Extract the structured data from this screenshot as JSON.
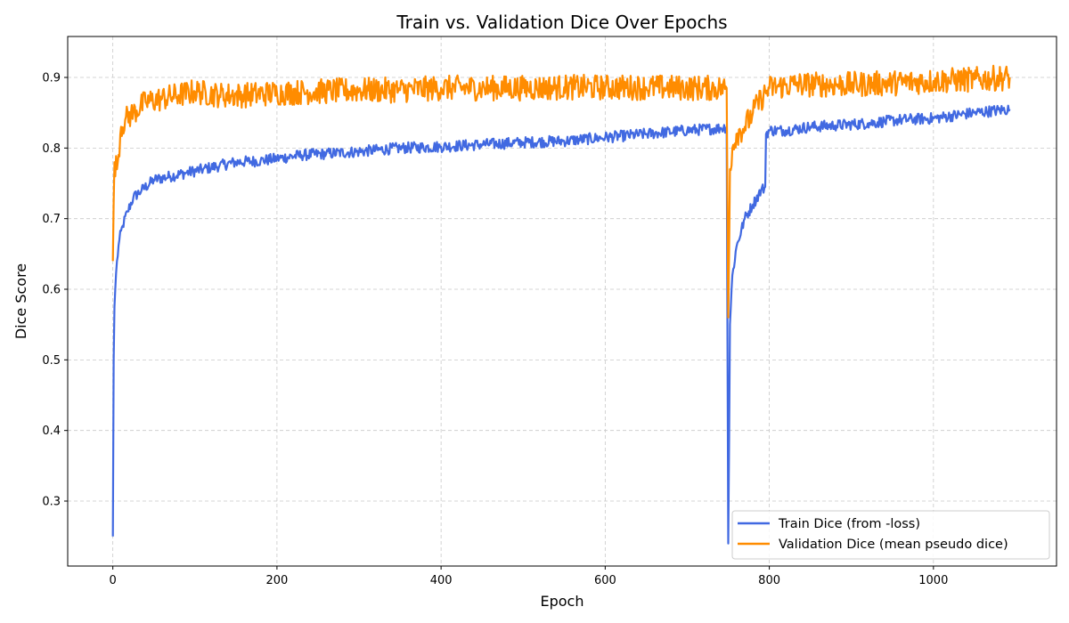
{
  "chart_data": {
    "type": "line",
    "title": "Train vs. Validation Dice Over Epochs",
    "xlabel": "Epoch",
    "ylabel": "Dice Score",
    "xlim": [
      -55,
      1150
    ],
    "ylim": [
      0.208,
      0.958
    ],
    "xticks": [
      0,
      200,
      400,
      600,
      800,
      1000
    ],
    "yticks": [
      0.3,
      0.4,
      0.5,
      0.6,
      0.7,
      0.8,
      0.9
    ],
    "grid": true,
    "legend_position": "lower-right",
    "series": [
      {
        "name": "Train Dice (from -loss)",
        "color": "#4169e1",
        "x": [
          0,
          1,
          2,
          3,
          5,
          8,
          12,
          18,
          25,
          35,
          50,
          70,
          90,
          110,
          130,
          150,
          180,
          200,
          230,
          260,
          300,
          350,
          400,
          450,
          500,
          550,
          600,
          650,
          700,
          740,
          748,
          750,
          752,
          755,
          760,
          770,
          780,
          790,
          795,
          796,
          800,
          820,
          850,
          880,
          920,
          960,
          1000,
          1050,
          1093
        ],
        "y": [
          0.25,
          0.5,
          0.575,
          0.6,
          0.64,
          0.67,
          0.69,
          0.71,
          0.73,
          0.74,
          0.755,
          0.76,
          0.765,
          0.77,
          0.775,
          0.78,
          0.782,
          0.785,
          0.79,
          0.792,
          0.795,
          0.8,
          0.802,
          0.805,
          0.808,
          0.81,
          0.815,
          0.82,
          0.825,
          0.828,
          0.83,
          0.24,
          0.55,
          0.62,
          0.66,
          0.7,
          0.72,
          0.74,
          0.745,
          0.82,
          0.825,
          0.825,
          0.83,
          0.832,
          0.835,
          0.84,
          0.842,
          0.85,
          0.855
        ],
        "noise": 0.008
      },
      {
        "name": "Validation Dice (mean pseudo dice)",
        "color": "#ff8c00",
        "x": [
          0,
          2,
          5,
          10,
          15,
          25,
          40,
          60,
          80,
          100,
          130,
          160,
          200,
          250,
          300,
          350,
          400,
          450,
          500,
          550,
          600,
          650,
          700,
          740,
          748,
          750,
          752,
          755,
          760,
          770,
          780,
          790,
          800,
          830,
          860,
          900,
          950,
          1000,
          1050,
          1093
        ],
        "y": [
          0.64,
          0.78,
          0.77,
          0.83,
          0.84,
          0.85,
          0.865,
          0.87,
          0.875,
          0.88,
          0.875,
          0.875,
          0.878,
          0.88,
          0.882,
          0.882,
          0.885,
          0.885,
          0.885,
          0.886,
          0.886,
          0.886,
          0.885,
          0.885,
          0.885,
          0.56,
          0.77,
          0.8,
          0.82,
          0.83,
          0.85,
          0.87,
          0.885,
          0.89,
          0.89,
          0.89,
          0.892,
          0.895,
          0.897,
          0.9
        ],
        "noise": 0.018
      }
    ]
  }
}
